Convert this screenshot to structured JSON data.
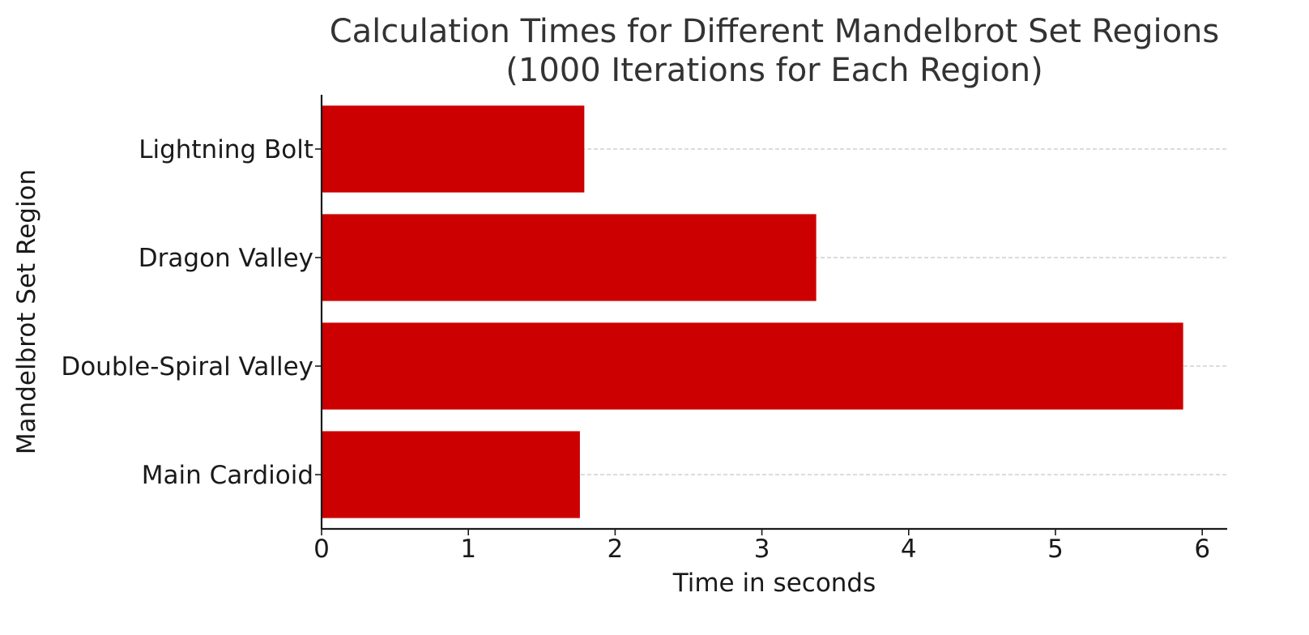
{
  "chart_data": {
    "type": "bar",
    "orientation": "horizontal",
    "title": "Calculation Times for Different Mandelbrot Set Regions\n(1000 Iterations for Each Region)",
    "xlabel": "Time in seconds",
    "ylabel": "Mandelbrot Set Region",
    "categories": [
      "Main Cardioid",
      "Double-Spiral Valley",
      "Dragon Valley",
      "Lightning Bolt"
    ],
    "values": [
      1.76,
      5.87,
      3.37,
      1.79
    ],
    "xlim": [
      0,
      6.17
    ],
    "xticks": [
      0,
      1,
      2,
      3,
      4,
      5,
      6
    ],
    "grid": "horizontal dashed",
    "colors": {
      "bar": "#cc0000",
      "grid": "#c8c8c8",
      "axis": "#1a1a1a",
      "text": "#1a1a1a",
      "title": "#333333"
    }
  }
}
